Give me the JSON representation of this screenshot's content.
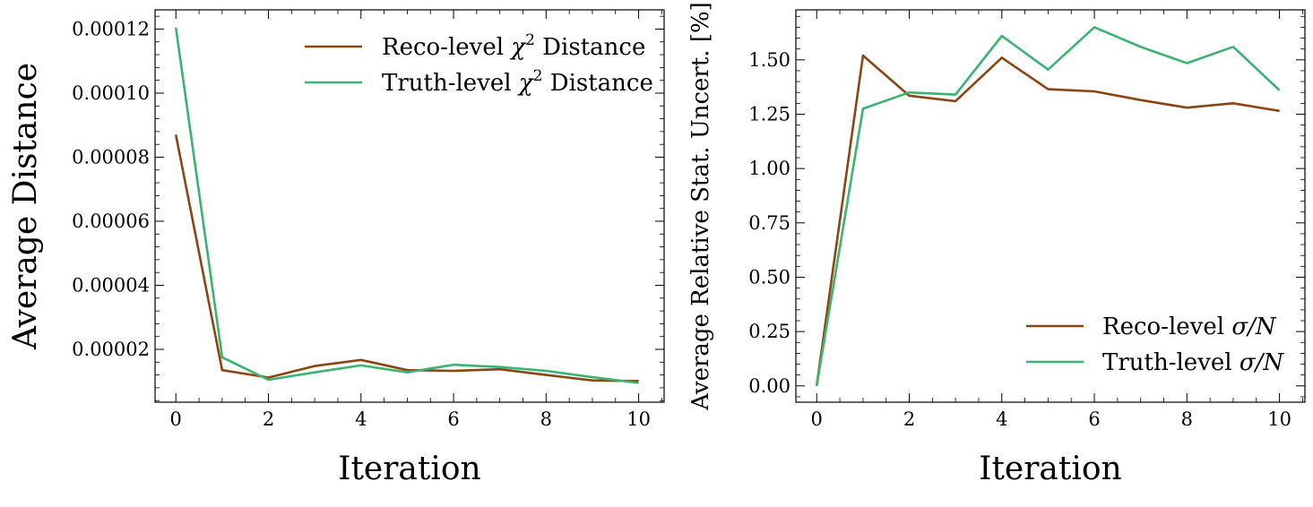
{
  "chart_data": [
    {
      "type": "line",
      "xlabel": "Iteration",
      "ylabel": "Average Distance",
      "xlim": [
        -0.45,
        10.55
      ],
      "ylim": [
        3.5e-06,
        0.000126
      ],
      "xticks": [
        0,
        2,
        4,
        6,
        8,
        10
      ],
      "xtick_labels": [
        "0",
        "2",
        "4",
        "6",
        "8",
        "10"
      ],
      "yticks": [
        2e-05,
        4e-05,
        6e-05,
        8e-05,
        0.0001,
        0.00012
      ],
      "ytick_labels": [
        "0.00002",
        "0.00004",
        "0.00006",
        "0.00008",
        "0.00010",
        "0.00012"
      ],
      "legend": "top-right",
      "grid": false,
      "x": [
        0,
        1,
        2,
        3,
        4,
        5,
        6,
        7,
        8,
        9,
        10
      ],
      "series": [
        {
          "name": "Reco-level χ² Distance",
          "name_plain": "Reco-level ",
          "name_math": "χ",
          "name_sup": "2",
          "name_rest": " Distance",
          "color": "#8b4513",
          "values": [
            8.7e-05,
            1.35e-05,
            1.12e-05,
            1.48e-05,
            1.67e-05,
            1.35e-05,
            1.33e-05,
            1.38e-05,
            1.2e-05,
            1.03e-05,
            1.01e-05
          ]
        },
        {
          "name": "Truth-level χ² Distance",
          "name_plain": "Truth-level ",
          "name_math": "χ",
          "name_sup": "2",
          "name_rest": " Distance",
          "color": "#3cb371",
          "values": [
            0.0001205,
            1.75e-05,
            1.05e-05,
            1.28e-05,
            1.5e-05,
            1.28e-05,
            1.52e-05,
            1.45e-05,
            1.33e-05,
            1.13e-05,
            9.5e-06
          ]
        }
      ]
    },
    {
      "type": "line",
      "xlabel": "Iteration",
      "ylabel": "Average Relative Stat. Uncert. [%]",
      "xlim": [
        -0.45,
        10.55
      ],
      "ylim": [
        -0.075,
        1.73
      ],
      "xticks": [
        0,
        2,
        4,
        6,
        8,
        10
      ],
      "xtick_labels": [
        "0",
        "2",
        "4",
        "6",
        "8",
        "10"
      ],
      "yticks": [
        0,
        0.25,
        0.5,
        0.75,
        1.0,
        1.25,
        1.5
      ],
      "ytick_labels": [
        "0.00",
        "0.25",
        "0.50",
        "0.75",
        "1.00",
        "1.25",
        "1.50"
      ],
      "legend": "bottom-right",
      "grid": false,
      "x": [
        0,
        1,
        2,
        3,
        4,
        5,
        6,
        7,
        8,
        9,
        10
      ],
      "series": [
        {
          "name": "Reco-level σ/N",
          "name_plain": "Reco-level ",
          "name_math": "σ/N",
          "name_sup": "",
          "name_rest": "",
          "color": "#8b4513",
          "values": [
            0,
            1.52,
            1.335,
            1.31,
            1.51,
            1.365,
            1.355,
            1.315,
            1.28,
            1.3,
            1.265
          ]
        },
        {
          "name": "Truth-level σ/N",
          "name_plain": "Truth-level ",
          "name_math": "σ/N",
          "name_sup": "",
          "name_rest": "",
          "color": "#3cb371",
          "values": [
            0,
            1.275,
            1.35,
            1.34,
            1.61,
            1.455,
            1.65,
            1.56,
            1.485,
            1.56,
            1.36
          ]
        }
      ]
    }
  ]
}
